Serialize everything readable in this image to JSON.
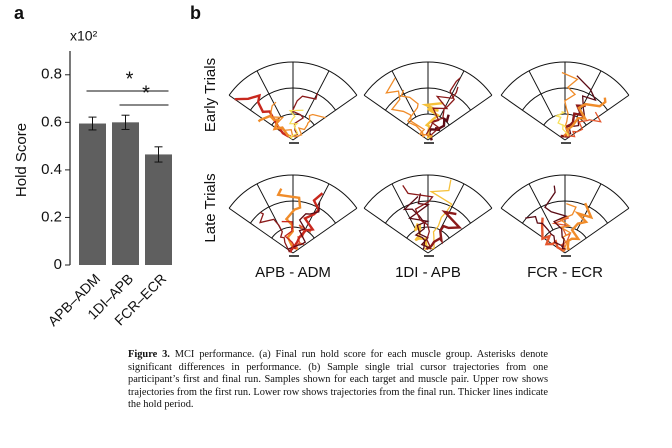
{
  "panels": {
    "a": "a",
    "b": "b"
  },
  "chart_data": {
    "type": "bar",
    "ylabel": "Hold Score",
    "multiplier": "x10²",
    "categories": [
      "APB–ADM",
      "1DI–APB",
      "FCR–ECR"
    ],
    "values": [
      0.595,
      0.6,
      0.465
    ],
    "errors": [
      0.027,
      0.03,
      0.032
    ],
    "color": "#5f5f5f",
    "ylim": [
      0,
      0.9
    ],
    "yticks": [
      0,
      0.2,
      0.4,
      0.6,
      0.8
    ],
    "annotations": [
      "*",
      "*"
    ]
  },
  "trajectories": {
    "rows": [
      "Early Trials",
      "Late Trials"
    ],
    "columns": [
      "APB - ADM",
      "1DI - APB",
      "FCR - ECR"
    ]
  },
  "caption": {
    "label": "Figure 3.",
    "text": "MCI performance. (a) Final run hold score for each muscle group. Asterisks denote significant differences in performance. (b) Sample single trial cursor trajectories from one participant’s first and final run. Samples shown for each target and muscle pair. Upper row shows trajectories from the first run. Lower row shows trajectories from the final run. Thicker lines indicate the hold period."
  }
}
